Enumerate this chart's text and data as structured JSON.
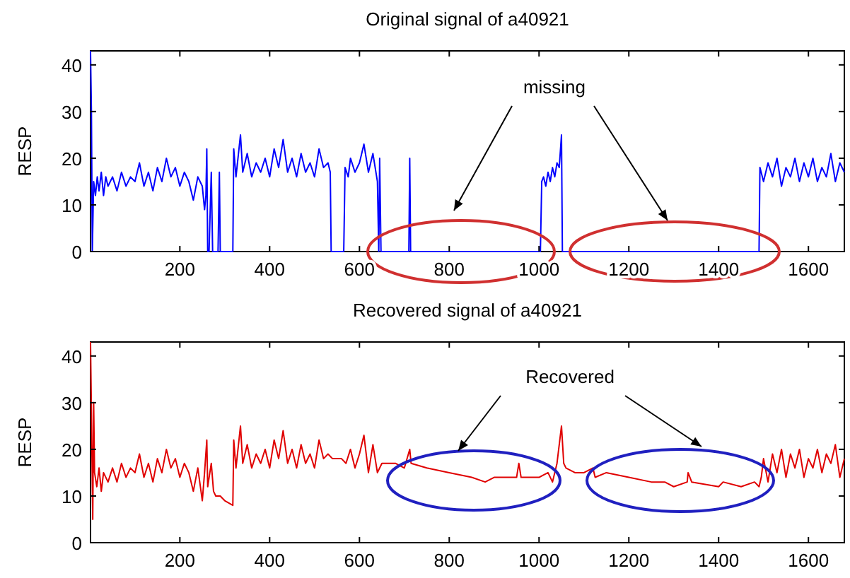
{
  "chart_data": [
    {
      "type": "line",
      "title": "Original signal of a40921",
      "ylabel": "RESP",
      "xlim": [
        1,
        1680
      ],
      "ylim": [
        0,
        43
      ],
      "xticks": [
        200,
        400,
        600,
        800,
        1000,
        1200,
        1400,
        1600
      ],
      "yticks": [
        0,
        10,
        20,
        30,
        40
      ],
      "annotations": [
        "missing"
      ],
      "series": [
        {
          "color": "#0000ff",
          "x": [
            1,
            3,
            5,
            8,
            12,
            16,
            20,
            25,
            30,
            35,
            40,
            50,
            60,
            70,
            80,
            90,
            100,
            110,
            120,
            130,
            140,
            150,
            160,
            170,
            180,
            190,
            200,
            210,
            220,
            230,
            240,
            250,
            255,
            258,
            260,
            262,
            265,
            270,
            273,
            285,
            288,
            290,
            318,
            320,
            325,
            335,
            340,
            350,
            360,
            370,
            380,
            390,
            400,
            410,
            420,
            430,
            440,
            450,
            460,
            470,
            480,
            490,
            500,
            510,
            520,
            530,
            535,
            537,
            565,
            568,
            575,
            580,
            590,
            600,
            610,
            620,
            630,
            640,
            643,
            645,
            648,
            710,
            712,
            714,
            1003,
            1006,
            1010,
            1015,
            1020,
            1025,
            1030,
            1035,
            1040,
            1045,
            1050,
            1052,
            1490,
            1492,
            1500,
            1510,
            1520,
            1530,
            1540,
            1550,
            1560,
            1570,
            1580,
            1590,
            1600,
            1610,
            1620,
            1630,
            1640,
            1650,
            1660,
            1670,
            1680
          ],
          "values": [
            43,
            30,
            0,
            15,
            12,
            16,
            13,
            17,
            12,
            16,
            14,
            16,
            13,
            17,
            14,
            16,
            15,
            19,
            14,
            17,
            13,
            18,
            15,
            20,
            16,
            18,
            14,
            17,
            15,
            11,
            16,
            14,
            9,
            12,
            22,
            0,
            0,
            17,
            0,
            0,
            17,
            0,
            0,
            22,
            16,
            25,
            17,
            21,
            16,
            19,
            17,
            20,
            16,
            22,
            18,
            24,
            17,
            20,
            16,
            21,
            17,
            19,
            16,
            22,
            18,
            19,
            17,
            0,
            0,
            18,
            16,
            20,
            17,
            19,
            23,
            17,
            21,
            15,
            0,
            20,
            0,
            0,
            20,
            0,
            0,
            15,
            16,
            14,
            17,
            15,
            18,
            16,
            19,
            18,
            25,
            0,
            0,
            18,
            15,
            19,
            16,
            20,
            14,
            18,
            16,
            20,
            15,
            19,
            16,
            20,
            15,
            18,
            16,
            21,
            15,
            19,
            17
          ]
        }
      ]
    },
    {
      "type": "line",
      "title": "Recovered signal of a40921",
      "ylabel": "RESP",
      "xlim": [
        1,
        1680
      ],
      "ylim": [
        0,
        43
      ],
      "xticks": [
        200,
        400,
        600,
        800,
        1000,
        1200,
        1400,
        1600
      ],
      "yticks": [
        0,
        10,
        20,
        30,
        40
      ],
      "annotations": [
        "Recovered"
      ],
      "series": [
        {
          "color": "#e00000",
          "x": [
            1,
            3,
            6,
            8,
            10,
            15,
            20,
            25,
            30,
            40,
            50,
            60,
            70,
            80,
            90,
            100,
            110,
            120,
            130,
            140,
            150,
            160,
            170,
            180,
            190,
            200,
            210,
            220,
            230,
            240,
            250,
            255,
            260,
            262,
            270,
            275,
            280,
            290,
            300,
            318,
            320,
            325,
            335,
            340,
            350,
            360,
            370,
            380,
            390,
            400,
            410,
            420,
            430,
            440,
            450,
            460,
            470,
            480,
            490,
            500,
            510,
            520,
            530,
            540,
            560,
            570,
            580,
            590,
            600,
            610,
            620,
            630,
            640,
            650,
            680,
            700,
            712,
            715,
            750,
            800,
            850,
            880,
            900,
            920,
            950,
            955,
            960,
            1000,
            1020,
            1030,
            1040,
            1050,
            1055,
            1060,
            1080,
            1100,
            1120,
            1125,
            1150,
            1200,
            1250,
            1280,
            1300,
            1330,
            1332,
            1340,
            1400,
            1410,
            1450,
            1480,
            1490,
            1495,
            1500,
            1510,
            1520,
            1530,
            1540,
            1550,
            1560,
            1570,
            1580,
            1590,
            1600,
            1610,
            1620,
            1630,
            1640,
            1650,
            1660,
            1670,
            1680
          ],
          "values": [
            43,
            28,
            5,
            30,
            15,
            12,
            16,
            11,
            15,
            13,
            16,
            13,
            17,
            14,
            16,
            15,
            19,
            14,
            17,
            13,
            18,
            15,
            20,
            16,
            18,
            14,
            17,
            15,
            11,
            16,
            9,
            15,
            22,
            12,
            17,
            11,
            10,
            10,
            9,
            8,
            22,
            16,
            25,
            17,
            21,
            16,
            19,
            17,
            20,
            16,
            22,
            18,
            24,
            17,
            20,
            16,
            21,
            17,
            19,
            16,
            22,
            18,
            19,
            18,
            18,
            17,
            20,
            16,
            19,
            23,
            15,
            21,
            15,
            17,
            17,
            16,
            20,
            17,
            16,
            15,
            14,
            13,
            14,
            14,
            14,
            17,
            14,
            14,
            15,
            13,
            17,
            25,
            17,
            16,
            15,
            15,
            16,
            14,
            15,
            14,
            13,
            13,
            12,
            13,
            15,
            13,
            12,
            13,
            12,
            13,
            12,
            14,
            18,
            13,
            19,
            15,
            20,
            14,
            19,
            16,
            20,
            14,
            18,
            16,
            20,
            15,
            19,
            17,
            21,
            14,
            18
          ]
        }
      ]
    }
  ]
}
